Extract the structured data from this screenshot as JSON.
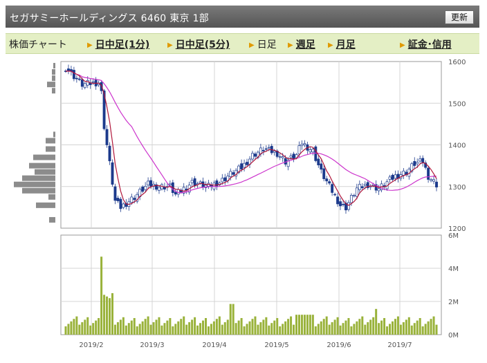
{
  "header": {
    "title": "セガサミーホールディングス 6460 東京 1部",
    "refresh_label": "更新"
  },
  "tabs": [
    {
      "label": "株価チャート",
      "link": false,
      "arrow": false
    },
    {
      "label": "日中足(1分)",
      "link": true,
      "arrow": true
    },
    {
      "label": "日中足(5分)",
      "link": true,
      "arrow": true
    },
    {
      "label": "日足",
      "link": false,
      "arrow": true
    },
    {
      "label": "週足",
      "link": true,
      "arrow": true
    },
    {
      "label": "月足",
      "link": true,
      "arrow": true
    },
    {
      "label": "証金･信用",
      "link": true,
      "arrow": true
    }
  ],
  "colors": {
    "up_candle": "#ffffff",
    "down_candle": "#1c3a8c",
    "candle_outline": "#1c3a8c",
    "ma_short": "#b0163a",
    "ma_long": "#cc33cc",
    "volume_bar": "#99b23a",
    "volume_profile": "#8c8c8c",
    "grid": "#d4d4d4"
  },
  "chart_data": [
    {
      "type": "candlestick",
      "price_axis_ticks": [
        1200,
        1300,
        1400,
        1500,
        1600
      ],
      "ylim": [
        1200,
        1600
      ],
      "x_ticks": [
        "2019/2",
        "2019/3",
        "2019/4",
        "2019/5",
        "2019/6",
        "2019/7"
      ],
      "moving_averages": [
        "short",
        "long"
      ],
      "volume_profile": true,
      "grid": true
    },
    {
      "type": "bar",
      "y_ticks": [
        "0M",
        "2M",
        "4M",
        "6M"
      ],
      "ylim": [
        0,
        6
      ]
    }
  ]
}
